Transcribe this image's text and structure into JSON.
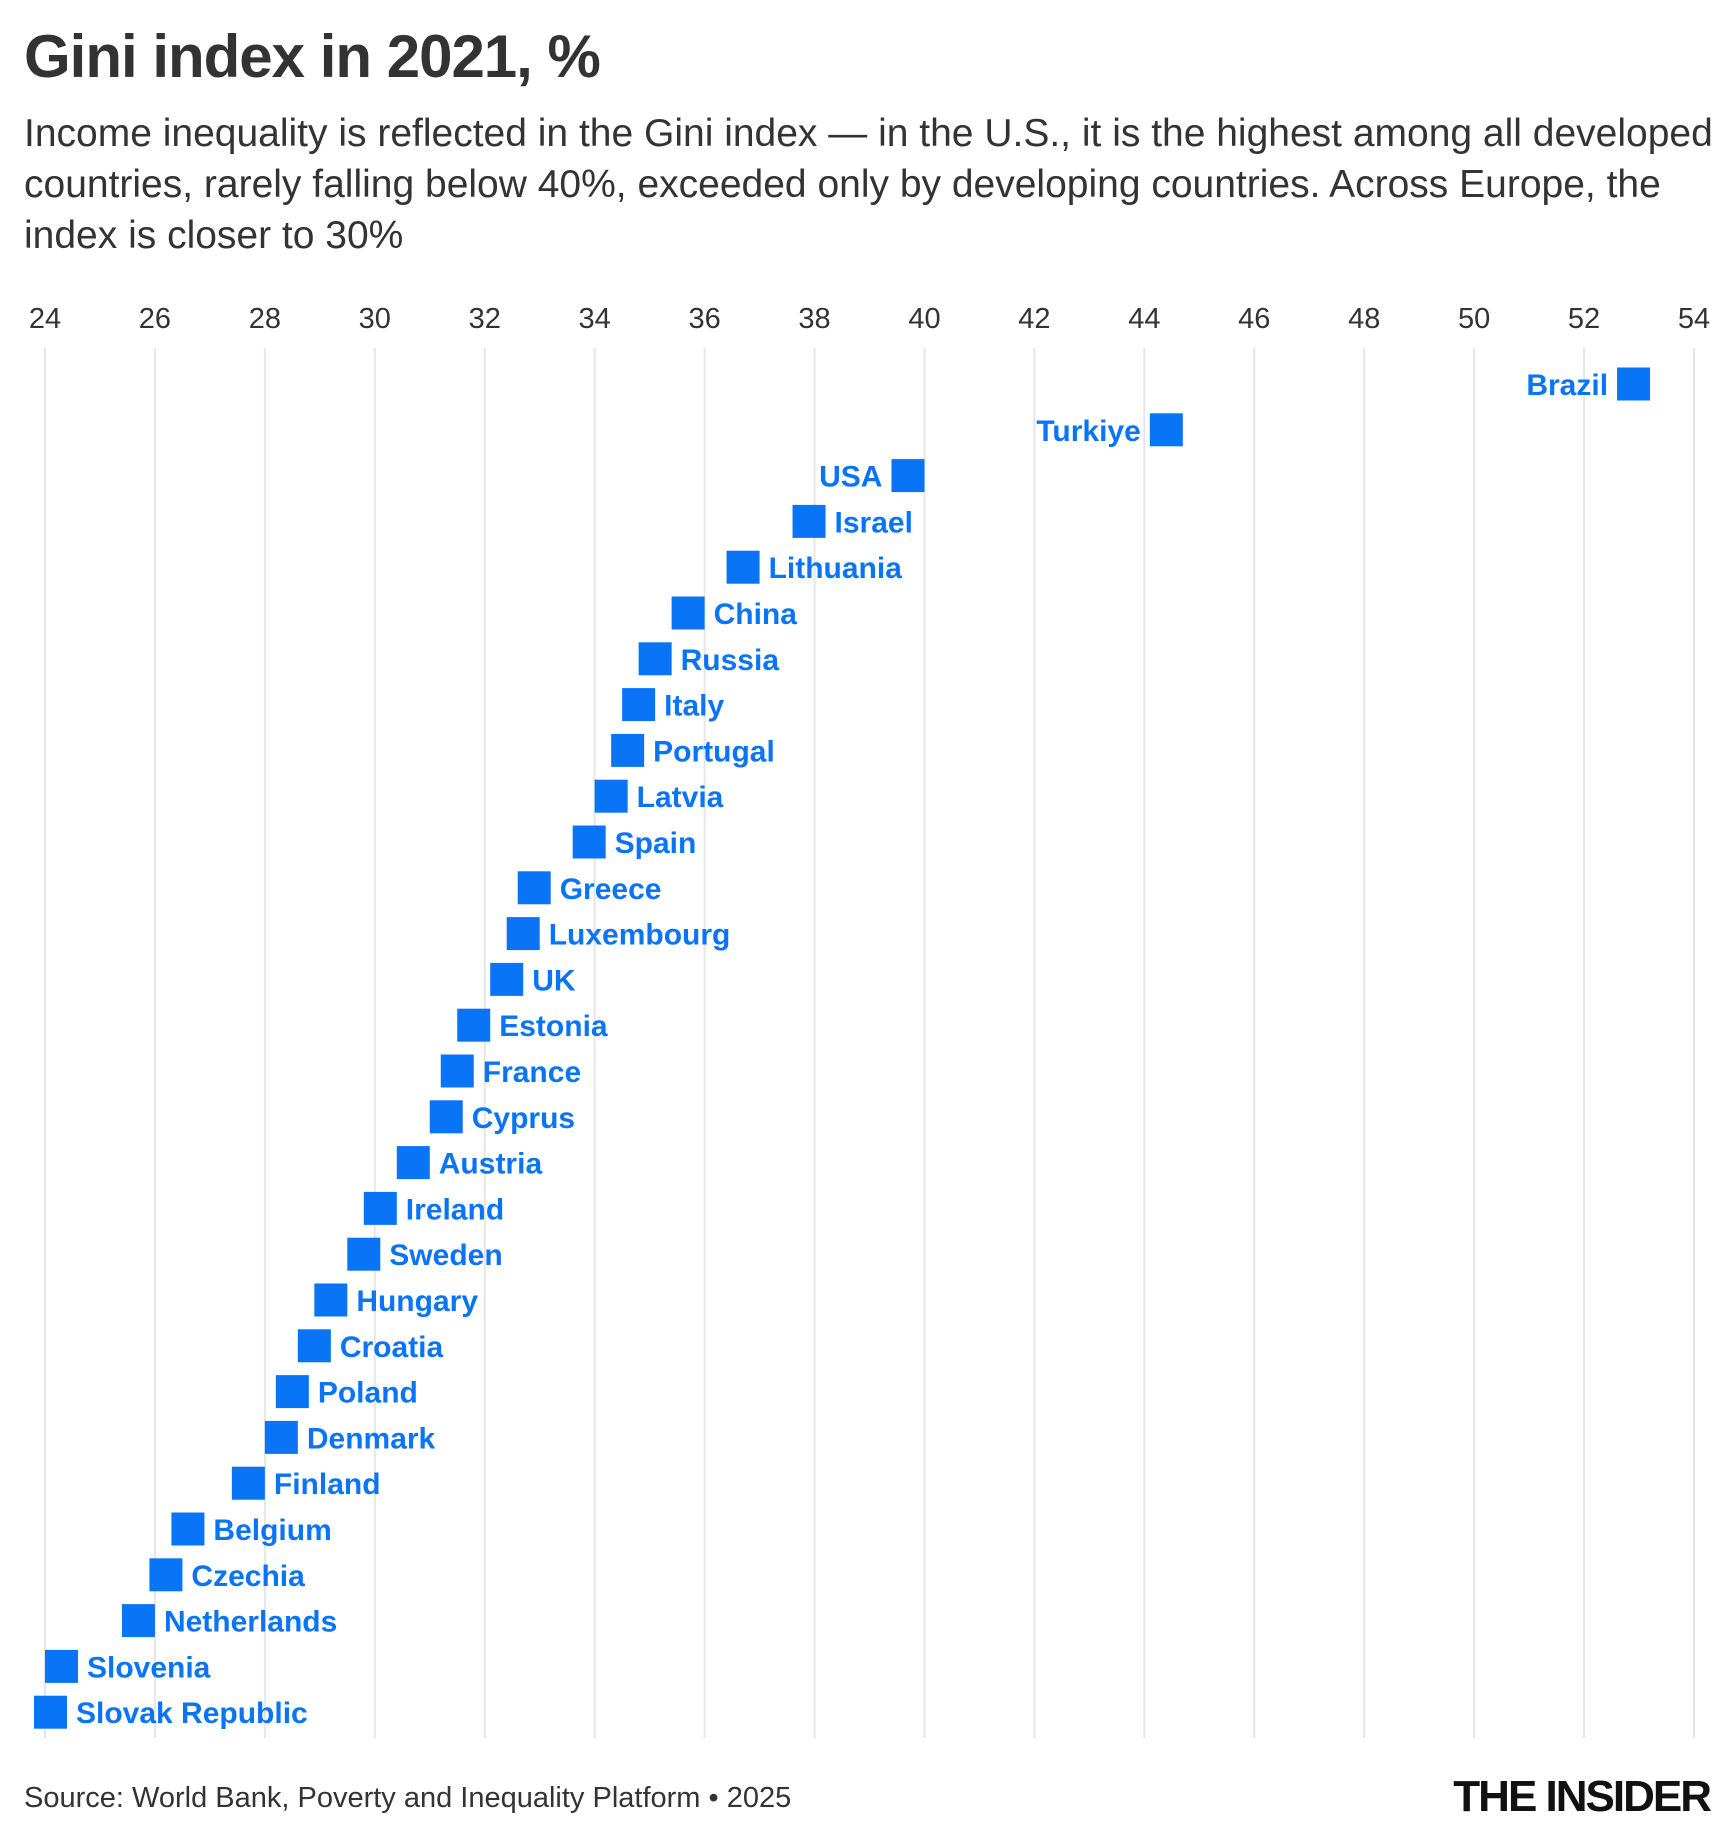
{
  "title": "Gini index in 2021, %",
  "subtitle": "Income inequality is reflected in the Gini index — in the U.S., it is the highest among all developed countries, rarely falling below 40%, exceeded only by developing countries. Across Europe, the index is closer to 30%",
  "source": "Source: World Bank, Poverty and Inequality Platform • 2025",
  "logo": "THE INSIDER",
  "colors": {
    "marker": "#0a74f7",
    "label": "#0a74f7",
    "grid": "#e6e6e6",
    "text": "#333333"
  },
  "chart_data": {
    "type": "scatter",
    "title": "Gini index in 2021, %",
    "xlim": [
      24,
      54
    ],
    "x_ticks": [
      24,
      26,
      28,
      30,
      32,
      34,
      36,
      38,
      40,
      42,
      44,
      46,
      48,
      50,
      52,
      54
    ],
    "x_axis_position": "top",
    "grid": true,
    "marker": "square",
    "points": [
      {
        "label": "Brazil",
        "value": 52.9
      },
      {
        "label": "Turkiye",
        "value": 44.4
      },
      {
        "label": "USA",
        "value": 39.7
      },
      {
        "label": "Israel",
        "value": 37.9
      },
      {
        "label": "Lithuania",
        "value": 36.7
      },
      {
        "label": "China",
        "value": 35.7
      },
      {
        "label": "Russia",
        "value": 35.1
      },
      {
        "label": "Italy",
        "value": 34.8
      },
      {
        "label": "Portugal",
        "value": 34.6
      },
      {
        "label": "Latvia",
        "value": 34.3
      },
      {
        "label": "Spain",
        "value": 33.9
      },
      {
        "label": "Greece",
        "value": 32.9
      },
      {
        "label": "Luxembourg",
        "value": 32.7
      },
      {
        "label": "UK",
        "value": 32.4
      },
      {
        "label": "Estonia",
        "value": 31.8
      },
      {
        "label": "France",
        "value": 31.5
      },
      {
        "label": "Cyprus",
        "value": 31.3
      },
      {
        "label": "Austria",
        "value": 30.7
      },
      {
        "label": "Ireland",
        "value": 30.1
      },
      {
        "label": "Sweden",
        "value": 29.8
      },
      {
        "label": "Hungary",
        "value": 29.2
      },
      {
        "label": "Croatia",
        "value": 28.9
      },
      {
        "label": "Poland",
        "value": 28.5
      },
      {
        "label": "Denmark",
        "value": 28.3
      },
      {
        "label": "Finland",
        "value": 27.7
      },
      {
        "label": "Belgium",
        "value": 26.6
      },
      {
        "label": "Czechia",
        "value": 26.2
      },
      {
        "label": "Netherlands",
        "value": 25.7
      },
      {
        "label": "Slovenia",
        "value": 24.3
      },
      {
        "label": "Slovak Republic",
        "value": 24.1
      }
    ]
  }
}
